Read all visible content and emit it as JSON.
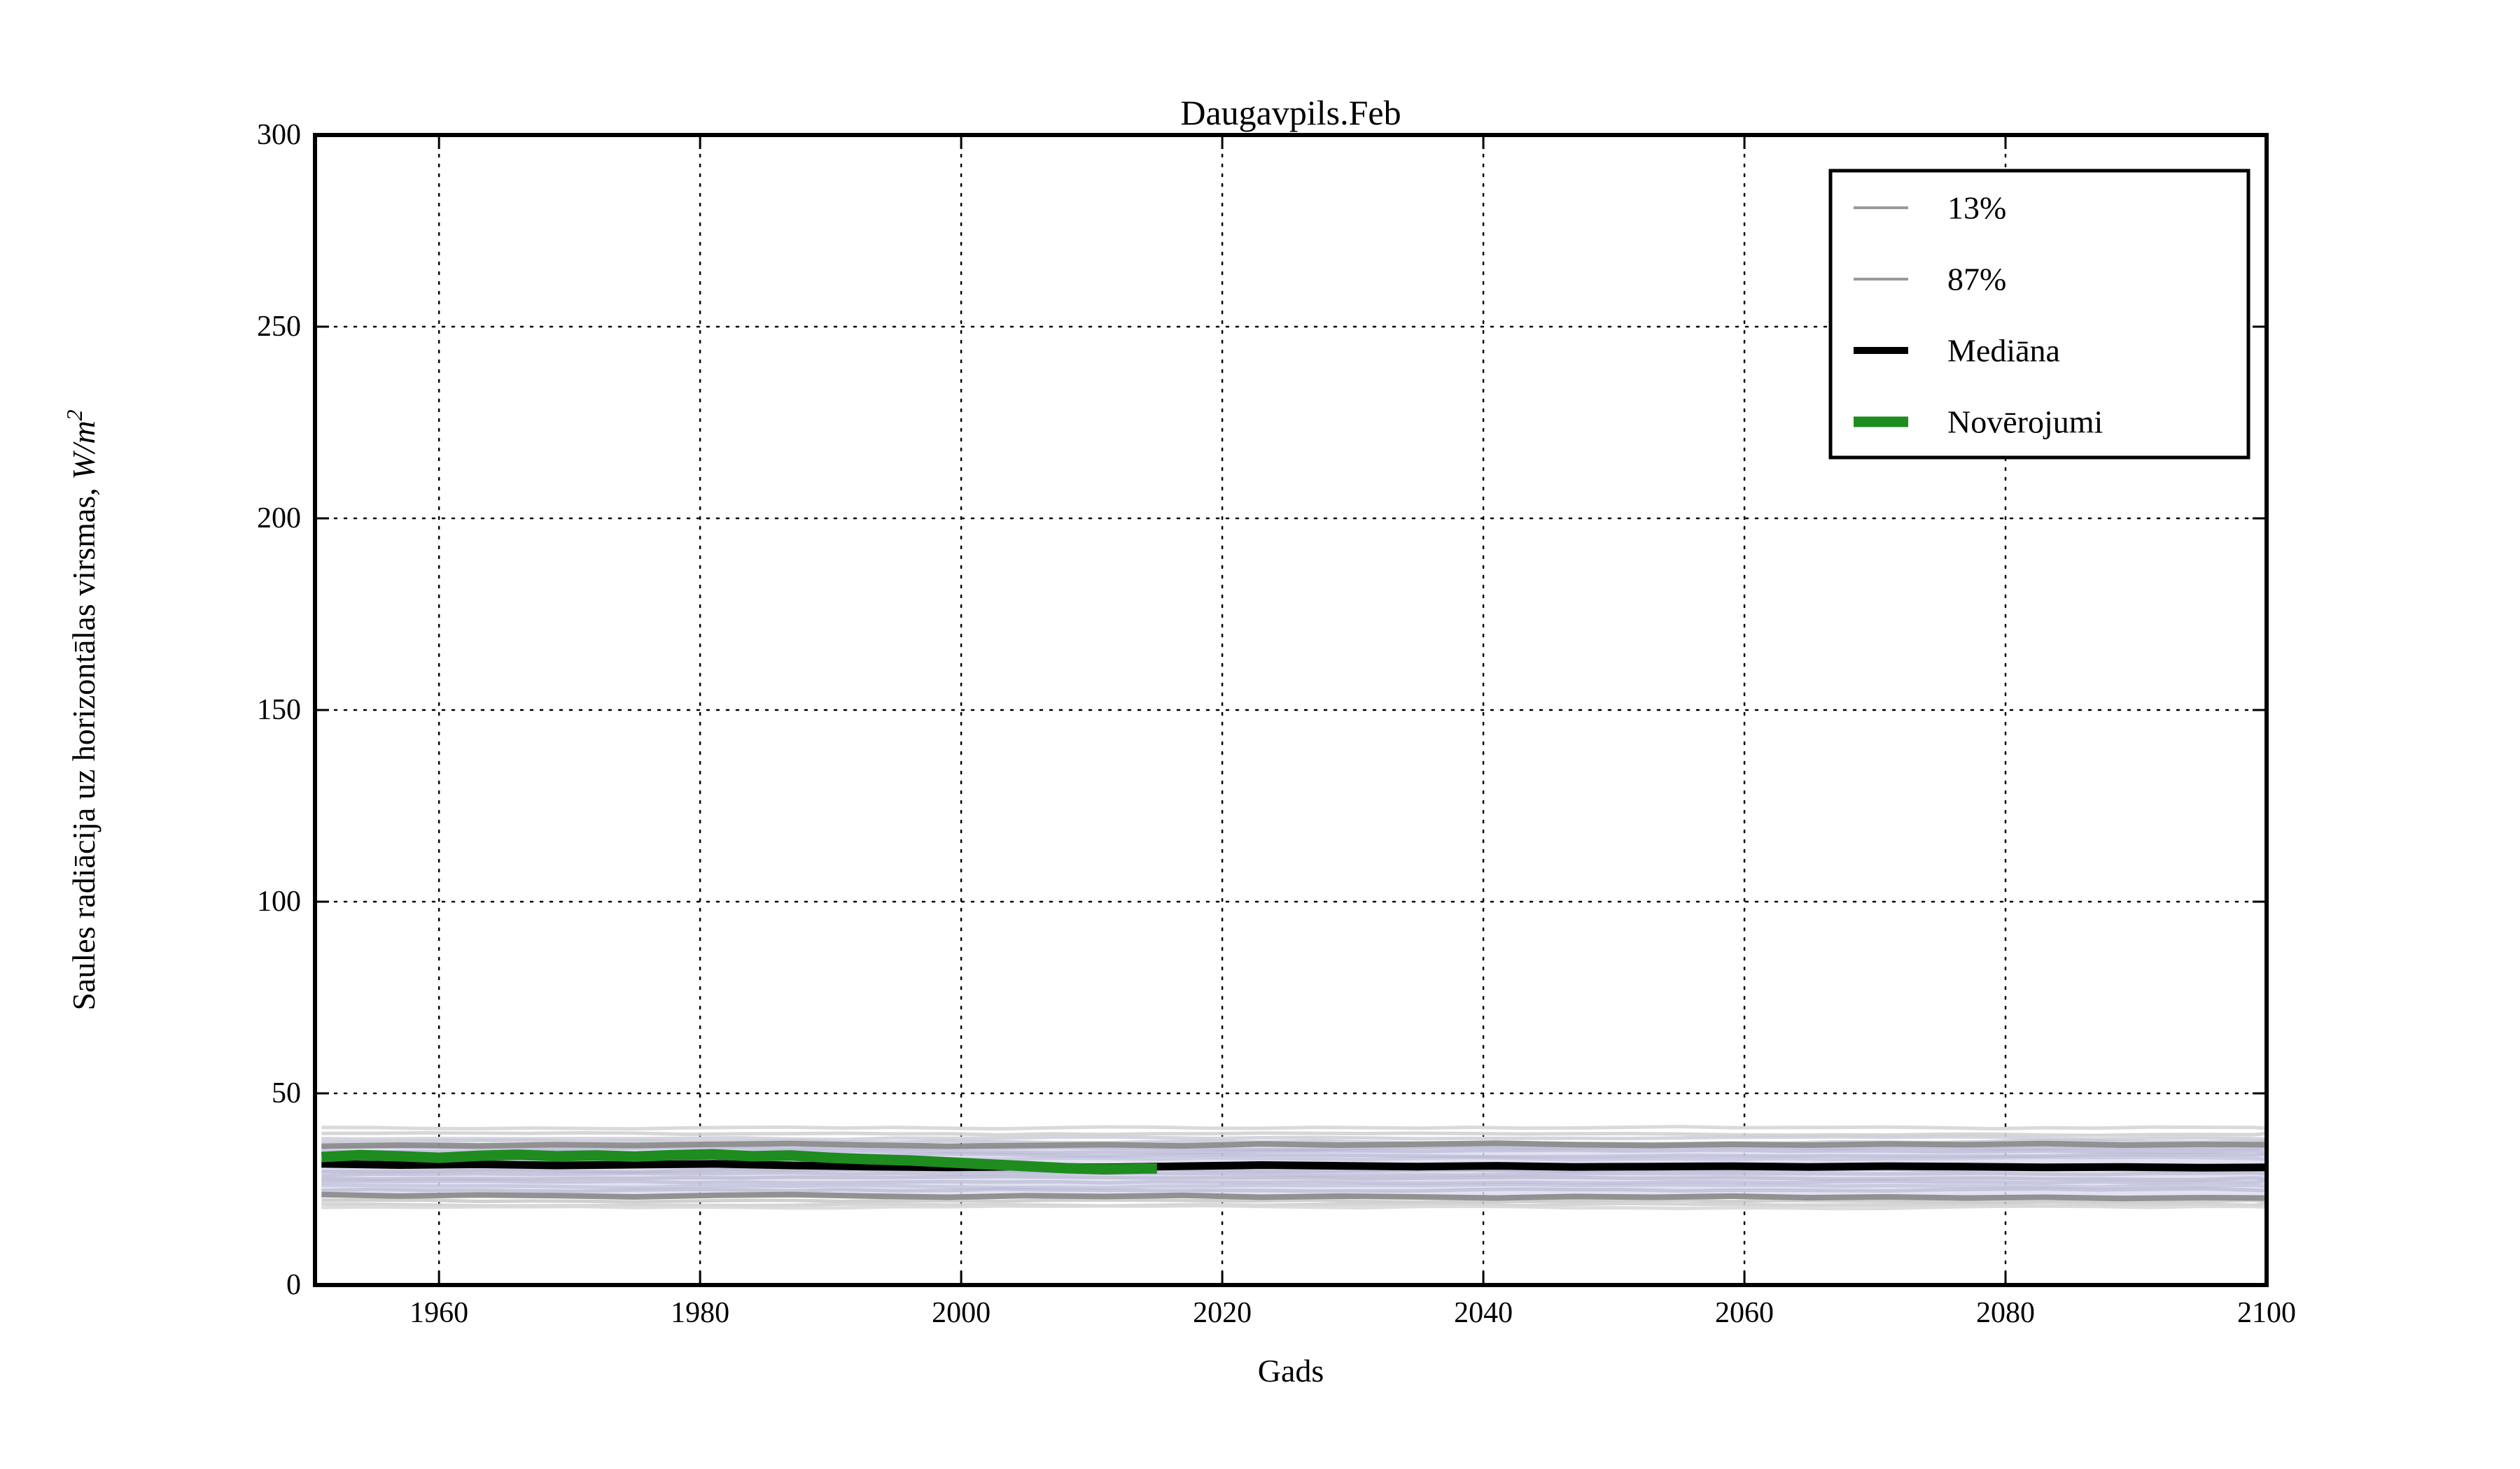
{
  "figure": {
    "background": "#ffffff",
    "text_color": "#000000"
  },
  "chart_data": {
    "type": "line",
    "title": "Daugavpils.Feb",
    "xlabel": "Gads",
    "ylabel": "Saules radiācija uz horizontālas virsmas, W/m²",
    "ylabel_parts": {
      "text": "Saules radiācija uz horizontālas virsmas, ",
      "math": "W/m",
      "sup": "2"
    },
    "xlim": [
      1950.5,
      2100
    ],
    "ylim": [
      0,
      300
    ],
    "xticks": [
      1960,
      1980,
      2000,
      2020,
      2040,
      2060,
      2080,
      2100
    ],
    "yticks": [
      0,
      50,
      100,
      150,
      200,
      250,
      300
    ],
    "grid": "dotted",
    "grid_color": "#000000",
    "legend": {
      "position": "upper-right",
      "entries": [
        {
          "label": "13%",
          "color": "#999999",
          "sample_width": 4
        },
        {
          "label": "87%",
          "color": "#999999",
          "sample_width": 4
        },
        {
          "label": "Mediāna",
          "color": "#000000",
          "sample_width": 10
        },
        {
          "label": "Novērojumi",
          "color": "#1e8c1e",
          "sample_width": 15
        }
      ]
    },
    "band": {
      "fill": "#dcdcee",
      "opacity": 0.85
    },
    "series": [
      {
        "name": "87%",
        "role": "percentile-upper",
        "color": "#8c8c8c",
        "width": 8,
        "opacity": 0.95,
        "points": [
          [
            1951,
            36.2
          ],
          [
            1957,
            36.5
          ],
          [
            1963,
            36.3
          ],
          [
            1969,
            36.6
          ],
          [
            1975,
            36.4
          ],
          [
            1981,
            36.7
          ],
          [
            1987,
            36.9
          ],
          [
            1993,
            36.5
          ],
          [
            1999,
            36.2
          ],
          [
            2005,
            36.4
          ],
          [
            2011,
            36.6
          ],
          [
            2017,
            36.3
          ],
          [
            2023,
            36.8
          ],
          [
            2029,
            36.5
          ],
          [
            2035,
            36.7
          ],
          [
            2041,
            37.0
          ],
          [
            2047,
            36.6
          ],
          [
            2053,
            36.4
          ],
          [
            2059,
            36.7
          ],
          [
            2065,
            36.5
          ],
          [
            2071,
            36.8
          ],
          [
            2077,
            36.6
          ],
          [
            2083,
            36.9
          ],
          [
            2089,
            36.5
          ],
          [
            2095,
            36.7
          ],
          [
            2100,
            36.6
          ]
        ]
      },
      {
        "name": "13%",
        "role": "percentile-lower",
        "color": "#8c8c8c",
        "width": 8,
        "opacity": 0.95,
        "points": [
          [
            1951,
            23.6
          ],
          [
            1957,
            23.2
          ],
          [
            1963,
            23.5
          ],
          [
            1969,
            23.3
          ],
          [
            1975,
            23.0
          ],
          [
            1981,
            23.4
          ],
          [
            1987,
            23.6
          ],
          [
            1993,
            23.2
          ],
          [
            1999,
            22.9
          ],
          [
            2005,
            23.3
          ],
          [
            2011,
            23.1
          ],
          [
            2017,
            23.4
          ],
          [
            2023,
            22.9
          ],
          [
            2029,
            23.2
          ],
          [
            2035,
            23.0
          ],
          [
            2041,
            22.7
          ],
          [
            2047,
            23.1
          ],
          [
            2053,
            22.9
          ],
          [
            2059,
            23.2
          ],
          [
            2065,
            22.8
          ],
          [
            2071,
            23.0
          ],
          [
            2077,
            22.7
          ],
          [
            2083,
            22.9
          ],
          [
            2089,
            22.6
          ],
          [
            2095,
            22.8
          ],
          [
            2100,
            22.7
          ]
        ]
      },
      {
        "name": "Mediāna",
        "role": "median",
        "color": "#000000",
        "width": 11,
        "opacity": 1,
        "points": [
          [
            1951,
            31.6
          ],
          [
            1957,
            31.3
          ],
          [
            1963,
            31.5
          ],
          [
            1969,
            31.2
          ],
          [
            1975,
            31.4
          ],
          [
            1981,
            31.6
          ],
          [
            1987,
            31.2
          ],
          [
            1993,
            30.9
          ],
          [
            1999,
            30.7
          ],
          [
            2005,
            30.9
          ],
          [
            2011,
            30.7
          ],
          [
            2017,
            31.0
          ],
          [
            2023,
            31.3
          ],
          [
            2029,
            31.1
          ],
          [
            2035,
            30.9
          ],
          [
            2041,
            31.1
          ],
          [
            2047,
            30.8
          ],
          [
            2053,
            30.9
          ],
          [
            2059,
            31.0
          ],
          [
            2065,
            30.8
          ],
          [
            2071,
            31.0
          ],
          [
            2077,
            30.9
          ],
          [
            2083,
            30.7
          ],
          [
            2089,
            30.8
          ],
          [
            2095,
            30.6
          ],
          [
            2100,
            30.7
          ]
        ]
      },
      {
        "name": "Novērojumi",
        "role": "observations",
        "color": "#1e8c1e",
        "width": 15,
        "opacity": 1,
        "points": [
          [
            1951,
            33.4
          ],
          [
            1954,
            33.9
          ],
          [
            1957,
            33.6
          ],
          [
            1960,
            33.2
          ],
          [
            1963,
            33.7
          ],
          [
            1966,
            34.0
          ],
          [
            1969,
            33.6
          ],
          [
            1972,
            33.8
          ],
          [
            1975,
            33.5
          ],
          [
            1978,
            33.9
          ],
          [
            1981,
            34.1
          ],
          [
            1984,
            33.6
          ],
          [
            1987,
            33.8
          ],
          [
            1990,
            33.2
          ],
          [
            1993,
            32.8
          ],
          [
            1996,
            32.5
          ],
          [
            1999,
            32.0
          ],
          [
            2002,
            31.5
          ],
          [
            2005,
            31.0
          ],
          [
            2008,
            30.5
          ],
          [
            2011,
            30.2
          ],
          [
            2014,
            30.4
          ],
          [
            2015,
            30.4
          ]
        ]
      }
    ],
    "ensemble_lines": [
      {
        "base": 41.0,
        "amp": 0.5,
        "color": "#d6d6d6",
        "width": 5,
        "opacity": 0.9,
        "seed": 1
      },
      {
        "base": 39.4,
        "amp": 0.5,
        "color": "#d2d2d2",
        "width": 5,
        "opacity": 0.9,
        "seed": 2
      },
      {
        "base": 38.3,
        "amp": 0.5,
        "color": "#cdcdd8",
        "width": 5,
        "opacity": 0.85,
        "seed": 3
      },
      {
        "base": 37.4,
        "amp": 0.5,
        "color": "#c6c6d4",
        "width": 5,
        "opacity": 0.8,
        "seed": 4
      },
      {
        "base": 35.7,
        "amp": 0.5,
        "color": "#b0b0d0",
        "width": 5,
        "opacity": 0.6,
        "seed": 5
      },
      {
        "base": 34.8,
        "amp": 0.5,
        "color": "#b4b4d2",
        "width": 5,
        "opacity": 0.6,
        "seed": 6
      },
      {
        "base": 33.9,
        "amp": 0.5,
        "color": "#b0b0ce",
        "width": 5,
        "opacity": 0.55,
        "seed": 7
      },
      {
        "base": 33.0,
        "amp": 0.5,
        "color": "#b6b6d4",
        "width": 5,
        "opacity": 0.5,
        "seed": 8
      },
      {
        "base": 29.9,
        "amp": 0.5,
        "color": "#aeaecc",
        "width": 5,
        "opacity": 0.6,
        "seed": 9
      },
      {
        "base": 28.9,
        "amp": 0.5,
        "color": "#b4b4d0",
        "width": 5,
        "opacity": 0.6,
        "seed": 10
      },
      {
        "base": 27.9,
        "amp": 0.5,
        "color": "#b0b0cc",
        "width": 5,
        "opacity": 0.6,
        "seed": 11
      },
      {
        "base": 26.8,
        "amp": 0.5,
        "color": "#b6b6d2",
        "width": 5,
        "opacity": 0.6,
        "seed": 12
      },
      {
        "base": 25.8,
        "amp": 0.5,
        "color": "#babad6",
        "width": 5,
        "opacity": 0.6,
        "seed": 13
      },
      {
        "base": 24.8,
        "amp": 0.5,
        "color": "#b2b2ce",
        "width": 5,
        "opacity": 0.6,
        "seed": 14
      },
      {
        "base": 21.9,
        "amp": 0.5,
        "color": "#c8c8c8",
        "width": 5,
        "opacity": 0.85,
        "seed": 15
      },
      {
        "base": 21.0,
        "amp": 0.5,
        "color": "#d0d0d0",
        "width": 5,
        "opacity": 0.9,
        "seed": 16
      },
      {
        "base": 20.3,
        "amp": 0.5,
        "color": "#d8d8d8",
        "width": 5,
        "opacity": 0.9,
        "seed": 17
      }
    ]
  }
}
